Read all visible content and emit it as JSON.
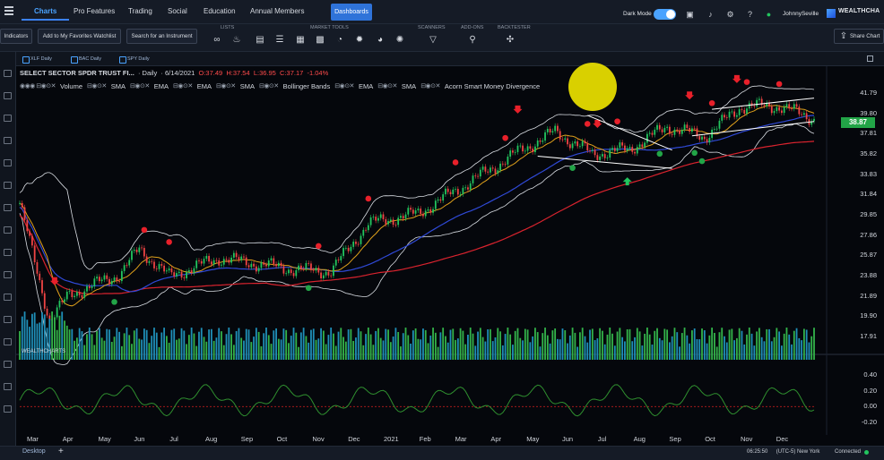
{
  "topnav": {
    "tabs": [
      "Charts",
      "Pro Features",
      "Trading",
      "Social",
      "Education",
      "Annual Members"
    ],
    "dashboards_label": "Dashboards",
    "dark_mode_label": "Dark Mode",
    "username": "JohnnySeville",
    "logo_text": "WEALTHCHA"
  },
  "toolbar": {
    "indicators_label": "Indicators",
    "favorites_label": "Add to My Favorites Watchlist",
    "search_label": "Search for an Instrument",
    "lists_label": "LISTS",
    "market_tools_label": "MARKET TOOLS",
    "scanners_label": "SCANNERS",
    "addons_label": "ADD-ONS",
    "backtester_label": "BACKTESTER",
    "share_label": "Share Chart"
  },
  "chart_tabs": [
    "XLF Daily",
    "BAC Daily",
    "SPY Daily"
  ],
  "info": {
    "symbol": "SELECT SECTOR SPDR TRUST FI...",
    "interval": "Daily",
    "date": "6/14/2021",
    "open": "O:37.49",
    "high": "H:37.54",
    "low": "L:36.95",
    "close": "C:37.17",
    "change": "-1.04%"
  },
  "indicators": [
    "Volume",
    "SMA",
    "EMA",
    "EMA",
    "SMA",
    "Bollinger Bands",
    "EMA",
    "SMA",
    "Acorn Smart Money Divergence"
  ],
  "price_axis": [
    "41.79",
    "39.80",
    "37.81",
    "35.82",
    "33.83",
    "31.84",
    "29.85",
    "27.86",
    "25.87",
    "23.88",
    "21.89",
    "19.90",
    "17.91"
  ],
  "last_price": "38.87",
  "oscillator_axis": [
    "0.40",
    "0.20",
    "0.00",
    "-0.20"
  ],
  "x_axis": [
    "Mar",
    "Apr",
    "May",
    "Jun",
    "Jul",
    "Aug",
    "Sep",
    "Oct",
    "Nov",
    "Dec",
    "2021",
    "Feb",
    "Mar",
    "Apr",
    "May",
    "Jun",
    "Jul",
    "Aug",
    "Sep",
    "Oct",
    "Nov",
    "Dec"
  ],
  "watermark": "WEALTHCHARTS",
  "bottombar": {
    "desktop_label": "Desktop",
    "clock": "06:25:50   (UTC-5) New York",
    "status": "Connected"
  },
  "colors": {
    "accent": "#3b82f6",
    "up": "#22c55e",
    "down": "#ef4444",
    "last_price_bg": "#22a447",
    "cursor_highlight": "#ebe200"
  }
}
